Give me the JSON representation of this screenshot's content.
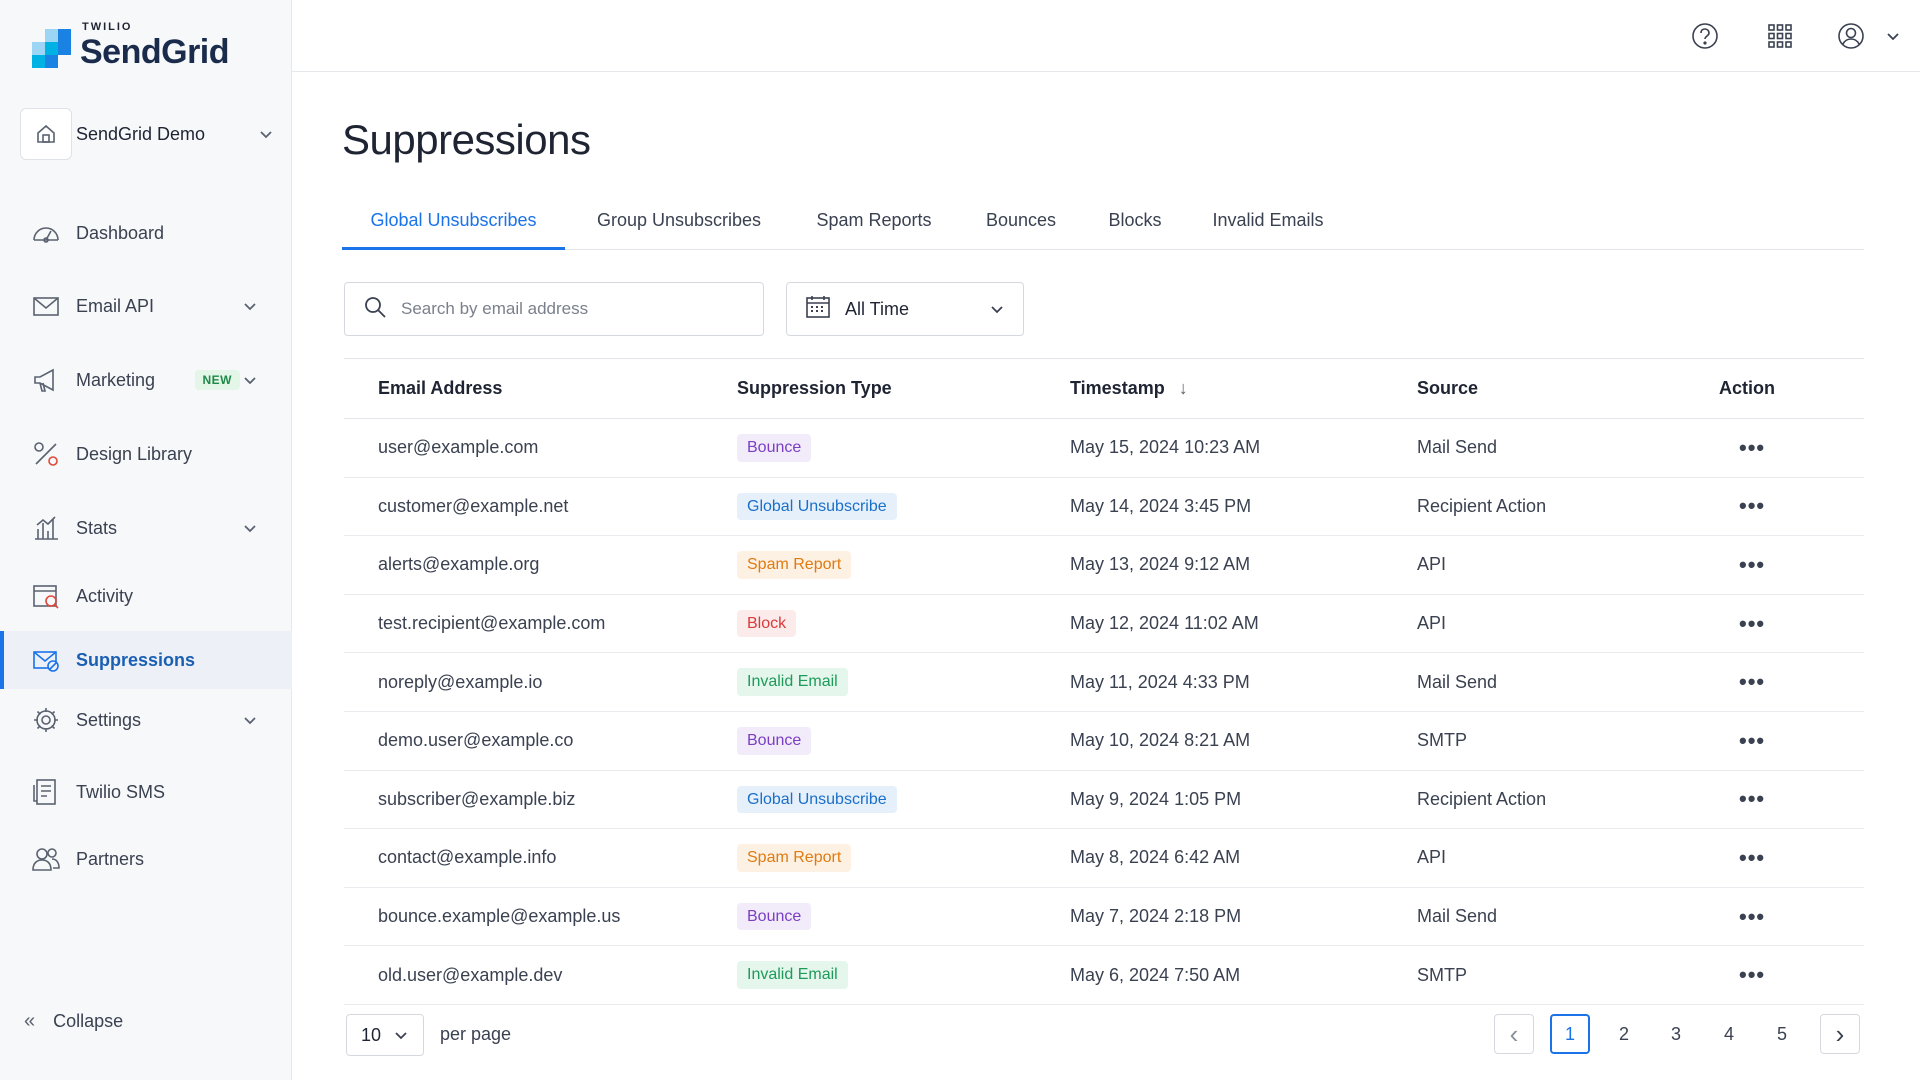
{
  "brand": {
    "company": "TWILIO",
    "product": "SendGrid"
  },
  "account": {
    "name": "SendGrid Demo"
  },
  "sidebar": {
    "items": [
      {
        "label": "Dashboard",
        "icon": "dashboard-gauge-icon"
      },
      {
        "label": "Email API",
        "icon": "envelope-icon"
      },
      {
        "label": "Marketing",
        "icon": "megaphone-icon",
        "badge": "NEW"
      },
      {
        "label": "Design Library",
        "icon": "design-tools-icon"
      },
      {
        "label": "Stats",
        "icon": "bar-chart-icon"
      },
      {
        "label": "Activity",
        "icon": "activity-icon"
      },
      {
        "label": "Suppressions",
        "icon": "suppressions-icon"
      },
      {
        "label": "Settings",
        "icon": "gear-icon"
      },
      {
        "label": "Twilio SMS",
        "icon": "sms-icon"
      },
      {
        "label": "Partners",
        "icon": "partners-icon"
      }
    ],
    "collapse_label": "Collapse"
  },
  "topbar": {
    "icons": [
      "help-icon",
      "apps-grid-icon",
      "user-account-icon"
    ]
  },
  "page": {
    "title": "Suppressions",
    "tabs": [
      {
        "label": "Global Unsubscribes"
      },
      {
        "label": "Group Unsubscribes"
      },
      {
        "label": "Spam Reports"
      },
      {
        "label": "Bounces"
      },
      {
        "label": "Blocks"
      },
      {
        "label": "Invalid Emails"
      }
    ]
  },
  "filters": {
    "search_placeholder": "Search by email address",
    "date_range": "All Time"
  },
  "table": {
    "headers": {
      "email": "Email Address",
      "type": "Suppression Type",
      "timestamp": "Timestamp",
      "source": "Source",
      "action": "Action"
    },
    "rows": [
      {
        "email": "user@example.com",
        "type": "Bounce",
        "timestamp": "May 15, 2024 10:23 AM",
        "source": "Mail Send"
      },
      {
        "email": "customer@example.net",
        "type": "Global Unsubscribe",
        "timestamp": "May 14, 2024 3:45 PM",
        "source": "Recipient Action"
      },
      {
        "email": "alerts@example.org",
        "type": "Spam Report",
        "timestamp": "May 13, 2024 9:12 AM",
        "source": "API"
      },
      {
        "email": "test.recipient@example.com",
        "type": "Block",
        "timestamp": "May 12, 2024 11:02 AM",
        "source": "API"
      },
      {
        "email": "noreply@example.io",
        "type": "Invalid Email",
        "timestamp": "May 11, 2024 4:33 PM",
        "source": "Mail Send"
      },
      {
        "email": "demo.user@example.co",
        "type": "Bounce",
        "timestamp": "May 10, 2024 8:21 AM",
        "source": "SMTP"
      },
      {
        "email": "subscriber@example.biz",
        "type": "Global Unsubscribe",
        "timestamp": "May 9, 2024 1:05 PM",
        "source": "Recipient Action"
      },
      {
        "email": "contact@example.info",
        "type": "Spam Report",
        "timestamp": "May 8, 2024 6:42 AM",
        "source": "API"
      },
      {
        "email": "bounce.example@example.us",
        "type": "Bounce",
        "timestamp": "May 7, 2024 2:18 PM",
        "source": "Mail Send"
      },
      {
        "email": "old.user@example.dev",
        "type": "Invalid Email",
        "timestamp": "May 6, 2024 7:50 AM",
        "source": "SMTP"
      }
    ],
    "action_glyph": "•••"
  },
  "type_colors": {
    "Bounce": {
      "fg": "#7b3fc4",
      "bg": "#f1ebfa"
    },
    "Global Unsubscribe": {
      "fg": "#1a6fc9",
      "bg": "#e6f0fb"
    },
    "Spam Report": {
      "fg": "#e07a12",
      "bg": "#fdf1e3"
    },
    "Block": {
      "fg": "#d93a3a",
      "bg": "#fcebeb"
    },
    "Invalid Email": {
      "fg": "#1e9a5a",
      "bg": "#e5f6ec"
    }
  },
  "pagination": {
    "per_page": "10",
    "per_page_label": "per page",
    "pages": [
      "1",
      "2",
      "3",
      "4",
      "5"
    ],
    "prev": "‹",
    "next": "›"
  },
  "colors": {
    "accent": "#1a73e8"
  }
}
